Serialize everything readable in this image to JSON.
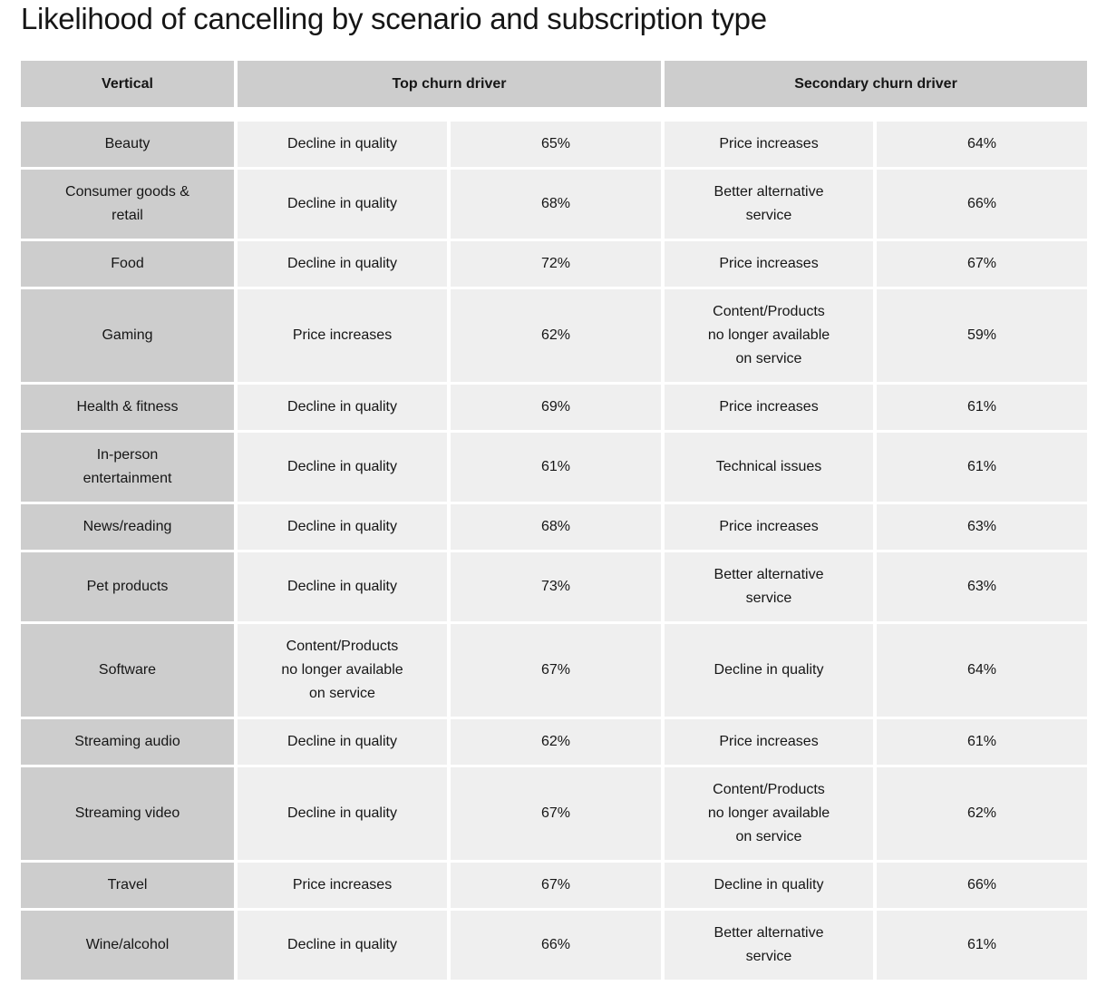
{
  "title": "Likelihood of cancelling by scenario and subscription type",
  "colors": {
    "header_bg": "#cdcdcd",
    "vertical_bg": "#cdcdcd",
    "cell_bg": "#efefef",
    "text": "#161616"
  },
  "chart_data": {
    "type": "table",
    "title": "Likelihood of cancelling by scenario and subscription type",
    "header_groups": [
      {
        "label": "Vertical",
        "span": 1
      },
      {
        "label": "Top churn driver",
        "span": 2
      },
      {
        "label": "Secondary churn driver",
        "span": 2
      }
    ],
    "columns": [
      "Vertical",
      "Top churn driver",
      "Top churn driver %",
      "Secondary churn driver",
      "Secondary churn driver %"
    ],
    "rows": [
      [
        "Beauty",
        "Decline in quality",
        "65%",
        "Price increases",
        "64%"
      ],
      [
        "Consumer goods &\nretail",
        "Decline in quality",
        "68%",
        "Better alternative\nservice",
        "66%"
      ],
      [
        "Food",
        "Decline in quality",
        "72%",
        "Price increases",
        "67%"
      ],
      [
        "Gaming",
        "Price increases",
        "62%",
        "Content/Products\nno longer available\non service",
        "59%"
      ],
      [
        "Health & fitness",
        "Decline in quality",
        "69%",
        "Price increases",
        "61%"
      ],
      [
        "In-person\nentertainment",
        "Decline in quality",
        "61%",
        "Technical issues",
        "61%"
      ],
      [
        "News/reading",
        "Decline in quality",
        "68%",
        "Price increases",
        "63%"
      ],
      [
        "Pet products",
        "Decline in quality",
        "73%",
        "Better alternative\nservice",
        "63%"
      ],
      [
        "Software",
        "Content/Products\nno longer available\non service",
        "67%",
        "Decline in quality",
        "64%"
      ],
      [
        "Streaming audio",
        "Decline in quality",
        "62%",
        "Price increases",
        "61%"
      ],
      [
        "Streaming video",
        "Decline in quality",
        "67%",
        "Content/Products\nno longer available\non service",
        "62%"
      ],
      [
        "Travel",
        "Price increases",
        "67%",
        "Decline in quality",
        "66%"
      ],
      [
        "Wine/alcohol",
        "Decline in quality",
        "66%",
        "Better alternative\nservice",
        "61%"
      ]
    ]
  }
}
